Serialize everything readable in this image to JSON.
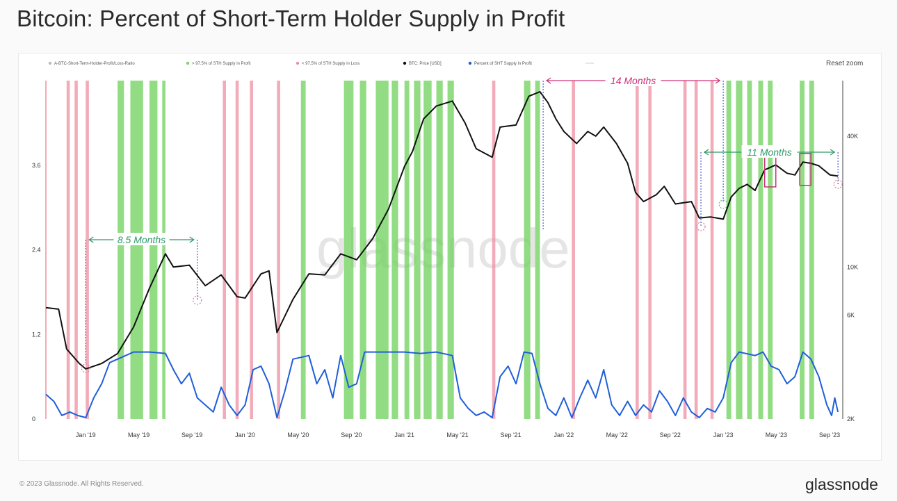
{
  "title": "Bitcoin: Percent of Short-Term Holder Supply in Profit",
  "reset_zoom": "Reset zoom",
  "footer": {
    "copyright": "© 2023 Glassnode. All Rights Reserved.",
    "logo": "glassnode"
  },
  "chart_data": {
    "type": "line",
    "watermark": "glassnode",
    "legend": [
      {
        "label": "A-BTC-Short-Term-Holder-Profit/Loss-Ratio",
        "color": "#bbbbbb"
      },
      {
        "label": "> 97.5% of STH Supply in Profit",
        "color": "#7fd36a"
      },
      {
        "label": "< 97.5% of STH Supply in Loss",
        "color": "#ee8fa0"
      },
      {
        "label": "BTC: Price [USD]",
        "color": "#111111"
      },
      {
        "label": "Percent of SHT Supply in Profit",
        "color": "#1f5fd8"
      }
    ],
    "x_ticks": [
      "Jan '19",
      "May '19",
      "Sep '19",
      "Jan '20",
      "May '20",
      "Sep '20",
      "Jan '21",
      "May '21",
      "Sep '21",
      "Jan '22",
      "May '22",
      "Sep '22",
      "Jan '23",
      "May '23",
      "Sep '23"
    ],
    "x_tick_times": [
      2019.0,
      2019.333,
      2019.667,
      2020.0,
      2020.333,
      2020.667,
      2021.0,
      2021.333,
      2021.667,
      2022.0,
      2022.333,
      2022.667,
      2023.0,
      2023.333,
      2023.667
    ],
    "x_range": [
      2018.75,
      2023.75
    ],
    "left_axis": {
      "ticks": [
        "0",
        "1.2",
        "2.4",
        "3.6"
      ],
      "values": [
        0,
        1.2,
        2.4,
        3.6
      ],
      "range": [
        0,
        4.8
      ]
    },
    "right_axis": {
      "ticks": [
        "2K",
        "6K",
        "10K",
        "40K"
      ],
      "values": [
        2000,
        6000,
        10000,
        40000
      ],
      "scale": "log",
      "range": [
        2000,
        72000
      ]
    },
    "series": [
      {
        "name": "BTC: Price [USD]",
        "axis": "right",
        "color": "#111111",
        "points": [
          [
            2018.75,
            6500
          ],
          [
            2018.83,
            6400
          ],
          [
            2018.88,
            4200
          ],
          [
            2018.96,
            3600
          ],
          [
            2019.0,
            3400
          ],
          [
            2019.1,
            3600
          ],
          [
            2019.2,
            4000
          ],
          [
            2019.3,
            5300
          ],
          [
            2019.4,
            8000
          ],
          [
            2019.5,
            11500
          ],
          [
            2019.55,
            10000
          ],
          [
            2019.65,
            10200
          ],
          [
            2019.75,
            8200
          ],
          [
            2019.85,
            9200
          ],
          [
            2019.95,
            7300
          ],
          [
            2020.0,
            7200
          ],
          [
            2020.1,
            9300
          ],
          [
            2020.15,
            9600
          ],
          [
            2020.2,
            5000
          ],
          [
            2020.3,
            7100
          ],
          [
            2020.4,
            9300
          ],
          [
            2020.5,
            9200
          ],
          [
            2020.6,
            11500
          ],
          [
            2020.7,
            10800
          ],
          [
            2020.8,
            13500
          ],
          [
            2020.9,
            18500
          ],
          [
            2021.0,
            29000
          ],
          [
            2021.05,
            34000
          ],
          [
            2021.12,
            48000
          ],
          [
            2021.2,
            55000
          ],
          [
            2021.3,
            58000
          ],
          [
            2021.38,
            46000
          ],
          [
            2021.45,
            35000
          ],
          [
            2021.55,
            32000
          ],
          [
            2021.6,
            44000
          ],
          [
            2021.7,
            45000
          ],
          [
            2021.78,
            61000
          ],
          [
            2021.85,
            64000
          ],
          [
            2021.9,
            57000
          ],
          [
            2021.95,
            48000
          ],
          [
            2022.0,
            42000
          ],
          [
            2022.08,
            37000
          ],
          [
            2022.15,
            42000
          ],
          [
            2022.2,
            40000
          ],
          [
            2022.25,
            44000
          ],
          [
            2022.33,
            37000
          ],
          [
            2022.4,
            30000
          ],
          [
            2022.45,
            22000
          ],
          [
            2022.5,
            20000
          ],
          [
            2022.58,
            21500
          ],
          [
            2022.63,
            23500
          ],
          [
            2022.7,
            19500
          ],
          [
            2022.8,
            20000
          ],
          [
            2022.85,
            16800
          ],
          [
            2022.92,
            17000
          ],
          [
            2023.0,
            16600
          ],
          [
            2023.05,
            21000
          ],
          [
            2023.1,
            23000
          ],
          [
            2023.15,
            24000
          ],
          [
            2023.2,
            22500
          ],
          [
            2023.26,
            28000
          ],
          [
            2023.33,
            29500
          ],
          [
            2023.4,
            27000
          ],
          [
            2023.45,
            26500
          ],
          [
            2023.5,
            30400
          ],
          [
            2023.55,
            30000
          ],
          [
            2023.6,
            29200
          ],
          [
            2023.67,
            26500
          ],
          [
            2023.72,
            26200
          ]
        ]
      },
      {
        "name": "Percent of SHT Supply in Profit",
        "axis": "left",
        "color": "#1f5fd8",
        "points": [
          [
            2018.75,
            0.35
          ],
          [
            2018.8,
            0.25
          ],
          [
            2018.85,
            0.05
          ],
          [
            2018.9,
            0.1
          ],
          [
            2018.95,
            0.05
          ],
          [
            2019.0,
            0.02
          ],
          [
            2019.05,
            0.3
          ],
          [
            2019.1,
            0.5
          ],
          [
            2019.15,
            0.8
          ],
          [
            2019.2,
            0.85
          ],
          [
            2019.3,
            0.95
          ],
          [
            2019.4,
            0.95
          ],
          [
            2019.5,
            0.93
          ],
          [
            2019.55,
            0.7
          ],
          [
            2019.6,
            0.5
          ],
          [
            2019.65,
            0.65
          ],
          [
            2019.7,
            0.3
          ],
          [
            2019.75,
            0.2
          ],
          [
            2019.8,
            0.1
          ],
          [
            2019.85,
            0.45
          ],
          [
            2019.9,
            0.2
          ],
          [
            2019.95,
            0.05
          ],
          [
            2020.0,
            0.2
          ],
          [
            2020.05,
            0.7
          ],
          [
            2020.1,
            0.75
          ],
          [
            2020.15,
            0.5
          ],
          [
            2020.2,
            0.02
          ],
          [
            2020.25,
            0.4
          ],
          [
            2020.3,
            0.85
          ],
          [
            2020.4,
            0.9
          ],
          [
            2020.45,
            0.5
          ],
          [
            2020.5,
            0.7
          ],
          [
            2020.55,
            0.3
          ],
          [
            2020.6,
            0.9
          ],
          [
            2020.65,
            0.45
          ],
          [
            2020.7,
            0.5
          ],
          [
            2020.75,
            0.95
          ],
          [
            2020.85,
            0.95
          ],
          [
            2021.0,
            0.95
          ],
          [
            2021.1,
            0.93
          ],
          [
            2021.2,
            0.95
          ],
          [
            2021.3,
            0.9
          ],
          [
            2021.35,
            0.3
          ],
          [
            2021.4,
            0.15
          ],
          [
            2021.45,
            0.05
          ],
          [
            2021.5,
            0.1
          ],
          [
            2021.55,
            0.02
          ],
          [
            2021.6,
            0.6
          ],
          [
            2021.65,
            0.75
          ],
          [
            2021.7,
            0.5
          ],
          [
            2021.75,
            0.95
          ],
          [
            2021.8,
            0.93
          ],
          [
            2021.85,
            0.5
          ],
          [
            2021.9,
            0.15
          ],
          [
            2021.95,
            0.05
          ],
          [
            2022.0,
            0.3
          ],
          [
            2022.05,
            0.02
          ],
          [
            2022.1,
            0.3
          ],
          [
            2022.15,
            0.55
          ],
          [
            2022.2,
            0.3
          ],
          [
            2022.25,
            0.7
          ],
          [
            2022.3,
            0.2
          ],
          [
            2022.35,
            0.05
          ],
          [
            2022.4,
            0.25
          ],
          [
            2022.45,
            0.05
          ],
          [
            2022.5,
            0.2
          ],
          [
            2022.55,
            0.1
          ],
          [
            2022.6,
            0.4
          ],
          [
            2022.65,
            0.25
          ],
          [
            2022.7,
            0.05
          ],
          [
            2022.75,
            0.3
          ],
          [
            2022.8,
            0.1
          ],
          [
            2022.85,
            0.02
          ],
          [
            2022.9,
            0.15
          ],
          [
            2022.95,
            0.1
          ],
          [
            2023.0,
            0.3
          ],
          [
            2023.05,
            0.8
          ],
          [
            2023.1,
            0.95
          ],
          [
            2023.2,
            0.9
          ],
          [
            2023.25,
            0.95
          ],
          [
            2023.3,
            0.75
          ],
          [
            2023.35,
            0.7
          ],
          [
            2023.4,
            0.5
          ],
          [
            2023.45,
            0.6
          ],
          [
            2023.5,
            0.95
          ],
          [
            2023.55,
            0.85
          ],
          [
            2023.6,
            0.6
          ],
          [
            2023.65,
            0.2
          ],
          [
            2023.68,
            0.05
          ],
          [
            2023.7,
            0.3
          ],
          [
            2023.72,
            0.1
          ]
        ]
      }
    ],
    "profit_bands": [
      [
        2019.2,
        2019.24
      ],
      [
        2019.28,
        2019.36
      ],
      [
        2019.4,
        2019.45
      ],
      [
        2019.48,
        2019.5
      ],
      [
        2020.35,
        2020.38
      ],
      [
        2020.62,
        2020.68
      ],
      [
        2020.72,
        2020.76
      ],
      [
        2020.82,
        2020.9
      ],
      [
        2020.92,
        2020.96
      ],
      [
        2021.0,
        2021.03
      ],
      [
        2021.06,
        2021.1
      ],
      [
        2021.12,
        2021.17
      ],
      [
        2021.2,
        2021.24
      ],
      [
        2021.27,
        2021.31
      ],
      [
        2021.75,
        2021.79
      ],
      [
        2021.82,
        2021.85
      ],
      [
        2023.02,
        2023.05
      ],
      [
        2023.08,
        2023.12
      ],
      [
        2023.15,
        2023.18
      ],
      [
        2023.22,
        2023.25
      ],
      [
        2023.28,
        2023.31
      ],
      [
        2023.48,
        2023.51
      ],
      [
        2023.54,
        2023.57
      ]
    ],
    "loss_bands": [
      [
        2018.88,
        2018.9
      ],
      [
        2018.93,
        2018.95
      ],
      [
        2019.0,
        2019.02
      ],
      [
        2019.86,
        2019.88
      ],
      [
        2019.94,
        2019.96
      ],
      [
        2020.03,
        2020.05
      ],
      [
        2020.2,
        2020.22
      ],
      [
        2021.55,
        2021.57
      ],
      [
        2022.05,
        2022.07
      ],
      [
        2022.45,
        2022.47
      ],
      [
        2022.53,
        2022.55
      ],
      [
        2022.75,
        2022.77
      ],
      [
        2022.82,
        2022.84
      ],
      [
        2022.92,
        2022.94
      ]
    ],
    "annotations": [
      {
        "text": "8.5 Months",
        "start": 2019.0,
        "end": 2019.7,
        "color": "#2e9a6a"
      },
      {
        "text": "14 Months",
        "start": 2021.87,
        "end": 2023.0,
        "color": "#d0307a"
      },
      {
        "text": "11 Months",
        "start": 2022.86,
        "end": 2023.72,
        "color": "#2e9a6a"
      }
    ]
  }
}
